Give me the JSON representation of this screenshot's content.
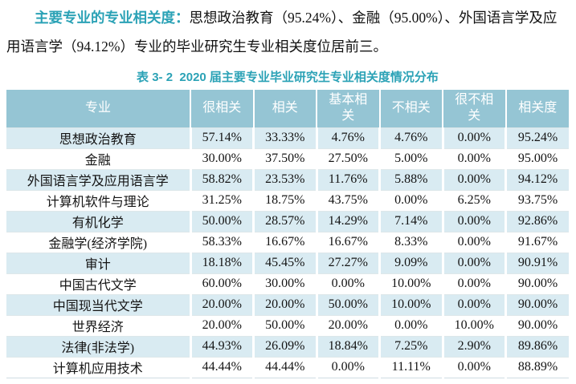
{
  "intro": {
    "lead": "主要专业的专业相关度：",
    "body": "思想政治教育（95.24%）、金融（95.00%）、外国语言学及应用语言学（94.12%）专业的毕业研究生专业相关度位居前三。"
  },
  "table": {
    "caption": "表 3- 2  2020 届主要专业毕业研究生专业相关度情况分布",
    "headers": [
      "专业",
      "很相关",
      "相关",
      "基本相\n关",
      "不相关",
      "很不相\n关",
      "相关度"
    ],
    "rows": [
      [
        "思想政治教育",
        "57.14%",
        "33.33%",
        "4.76%",
        "4.76%",
        "0.00%",
        "95.24%"
      ],
      [
        "金融",
        "30.00%",
        "37.50%",
        "27.50%",
        "5.00%",
        "0.00%",
        "95.00%"
      ],
      [
        "外国语言学及应用语言学",
        "58.82%",
        "23.53%",
        "11.76%",
        "5.88%",
        "0.00%",
        "94.12%"
      ],
      [
        "计算机软件与理论",
        "31.25%",
        "18.75%",
        "43.75%",
        "0.00%",
        "6.25%",
        "93.75%"
      ],
      [
        "有机化学",
        "50.00%",
        "28.57%",
        "14.29%",
        "7.14%",
        "0.00%",
        "92.86%"
      ],
      [
        "金融学(经济学院)",
        "58.33%",
        "16.67%",
        "16.67%",
        "8.33%",
        "0.00%",
        "91.67%"
      ],
      [
        "审计",
        "18.18%",
        "45.45%",
        "27.27%",
        "9.09%",
        "0.00%",
        "90.91%"
      ],
      [
        "中国古代文学",
        "60.00%",
        "30.00%",
        "0.00%",
        "10.00%",
        "0.00%",
        "90.00%"
      ],
      [
        "中国现当代文学",
        "20.00%",
        "20.00%",
        "50.00%",
        "10.00%",
        "0.00%",
        "90.00%"
      ],
      [
        "世界经济",
        "20.00%",
        "50.00%",
        "20.00%",
        "0.00%",
        "10.00%",
        "90.00%"
      ],
      [
        "法律(非法学)",
        "44.93%",
        "26.09%",
        "18.84%",
        "7.25%",
        "2.90%",
        "89.86%"
      ],
      [
        "计算机应用技术",
        "44.44%",
        "44.44%",
        "0.00%",
        "11.11%",
        "0.00%",
        "88.89%"
      ]
    ]
  },
  "colors": {
    "accent_teal": "#2ba2b6",
    "header_bg": "#95c5d4",
    "row_alt_bg": "#d9ebf2"
  }
}
